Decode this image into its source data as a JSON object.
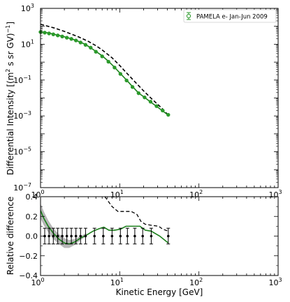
{
  "chart_data": [
    {
      "type": "line",
      "panel": "top",
      "xscale": "log",
      "yscale": "log",
      "xlim": [
        1,
        1000
      ],
      "ylim": [
        1e-07,
        1000
      ],
      "ylabel_parts": {
        "main": "Differential Intensity [(m",
        "sup1": "2",
        "mid": " s sr GV)",
        "sup2": "−1",
        "end": "]"
      },
      "xlabel": "",
      "xtick_labels": [
        {
          "base": "10",
          "exp": "0"
        },
        {
          "base": "10",
          "exp": "1"
        },
        {
          "base": "10",
          "exp": "2"
        },
        {
          "base": "10",
          "exp": "3"
        }
      ],
      "ytick_labels": [
        {
          "base": "10",
          "exp": "−7"
        },
        {
          "base": "10",
          "exp": "−5"
        },
        {
          "base": "10",
          "exp": "−3"
        },
        {
          "base": "10",
          "exp": "−1"
        },
        {
          "base": "10",
          "exp": "1"
        },
        {
          "base": "10",
          "exp": "3"
        }
      ],
      "legend": {
        "label": "PAMELA e- Jan-Jun 2009",
        "placement": "top-right"
      },
      "colors": {
        "data": "#2b9a2b",
        "model": "#1a7f1a",
        "reference": "#000000"
      },
      "series": [
        {
          "name": "PAMELA e- Jan-Jun 2009",
          "kind": "points",
          "x": [
            1.0,
            1.13,
            1.28,
            1.45,
            1.65,
            1.88,
            2.15,
            2.45,
            2.8,
            3.2,
            3.7,
            4.3,
            5.0,
            6.0,
            7.2,
            8.6,
            10.2,
            12.2,
            14.5,
            17.3,
            20.6,
            24.5,
            29.2,
            34.8,
            41.0
          ],
          "y": [
            48,
            44,
            40,
            35.5,
            31,
            27,
            23,
            19.8,
            16.2,
            12.5,
            9.2,
            6.4,
            3.8,
            2.1,
            1.06,
            0.5,
            0.22,
            0.095,
            0.041,
            0.0185,
            0.0108,
            0.0062,
            0.0035,
            0.002,
            0.00115
          ]
        },
        {
          "name": "",
          "kind": "line",
          "x": [
            1.0,
            1.28,
            1.65,
            2.15,
            2.8,
            3.7,
            5.0,
            6.0,
            7.2,
            8.6,
            10.2,
            12.2,
            14.5,
            17.3,
            20.6,
            24.5,
            29.2,
            34.8,
            41.0
          ],
          "y": [
            50,
            42,
            32,
            24,
            16.5,
            9.7,
            4.0,
            2.25,
            1.12,
            0.52,
            0.23,
            0.1,
            0.043,
            0.019,
            0.0108,
            0.006,
            0.0034,
            0.0019,
            0.0011
          ]
        },
        {
          "name": "",
          "kind": "dashed",
          "x": [
            1.0,
            1.5,
            2.0,
            3.0,
            4.0,
            5.0,
            6.0,
            8.0,
            10.0,
            12.0,
            15.0,
            20.0,
            25.0,
            30.0,
            35.0,
            41.0
          ],
          "y": [
            130,
            80,
            52,
            26,
            14.5,
            8.3,
            4.8,
            1.75,
            0.65,
            0.27,
            0.095,
            0.025,
            0.0095,
            0.0045,
            0.0024,
            0.0011
          ]
        }
      ]
    },
    {
      "type": "line",
      "panel": "bottom",
      "xscale": "log",
      "yscale": "linear",
      "xlim": [
        1,
        1000
      ],
      "ylim": [
        -0.4,
        0.4
      ],
      "ylabel": "Relative difference",
      "xlabel": "Kinetic Energy [GeV]",
      "xtick_labels": [
        {
          "base": "10",
          "exp": "0"
        },
        {
          "base": "10",
          "exp": "1"
        },
        {
          "base": "10",
          "exp": "2"
        },
        {
          "base": "10",
          "exp": "3"
        }
      ],
      "ytick_labels": [
        "−0.4",
        "−0.2",
        "0.0",
        "0.2",
        "0.4"
      ],
      "ytick_values": [
        -0.4,
        -0.2,
        0.0,
        0.2,
        0.4
      ],
      "colors": {
        "model": "#1a7f1a",
        "band": "#b8b8b8",
        "reference": "#000000"
      },
      "errorbar_points": {
        "x": [
          1.13,
          1.28,
          1.45,
          1.65,
          1.88,
          2.15,
          2.45,
          2.8,
          3.2,
          3.7,
          4.8,
          6.2,
          8.0,
          10.2,
          12.5,
          15.5,
          19.5,
          25.0,
          41.0
        ],
        "y": [
          0,
          0,
          0,
          0,
          0,
          0,
          0,
          0,
          0,
          0,
          0,
          0,
          0,
          0,
          0,
          0,
          0,
          0,
          0
        ],
        "err": [
          0.08,
          0.08,
          0.08,
          0.08,
          0.08,
          0.08,
          0.08,
          0.08,
          0.08,
          0.08,
          0.08,
          0.08,
          0.08,
          0.08,
          0.08,
          0.08,
          0.08,
          0.08,
          0.08
        ]
      },
      "model_line": {
        "x": [
          1.0,
          1.1,
          1.25,
          1.45,
          1.7,
          2.0,
          2.3,
          2.7,
          3.2,
          3.8,
          4.6,
          5.5,
          6.3,
          7.3,
          8.6,
          10.2,
          12.0,
          15.0,
          18.0,
          21.0,
          25.0,
          32.0,
          41.0
        ],
        "y": [
          0.26,
          0.18,
          0.1,
          0.03,
          -0.03,
          -0.07,
          -0.08,
          -0.06,
          -0.02,
          0.01,
          0.05,
          0.075,
          0.09,
          0.06,
          0.06,
          0.07,
          0.1,
          0.1,
          0.1,
          0.06,
          0.05,
          0.0,
          -0.07
        ]
      },
      "band": {
        "x": [
          1.0,
          1.1,
          1.25,
          1.45,
          1.7,
          2.0,
          2.3,
          2.7,
          3.2,
          3.8
        ],
        "lower": [
          0.18,
          0.11,
          0.04,
          -0.03,
          -0.08,
          -0.12,
          -0.12,
          -0.09,
          -0.04,
          0.0
        ],
        "upper": [
          0.33,
          0.25,
          0.16,
          0.08,
          0.02,
          -0.02,
          -0.04,
          -0.03,
          0.0,
          0.03
        ]
      },
      "reference_line": {
        "x": [
          6.5,
          8.0,
          9.5,
          11.0,
          14.0,
          16.5,
          18.5,
          21.0,
          25.0,
          31.0,
          35.0,
          41.0
        ],
        "y": [
          0.4,
          0.3,
          0.25,
          0.25,
          0.25,
          0.22,
          0.15,
          0.12,
          0.11,
          0.1,
          0.07,
          0.05
        ]
      }
    }
  ]
}
